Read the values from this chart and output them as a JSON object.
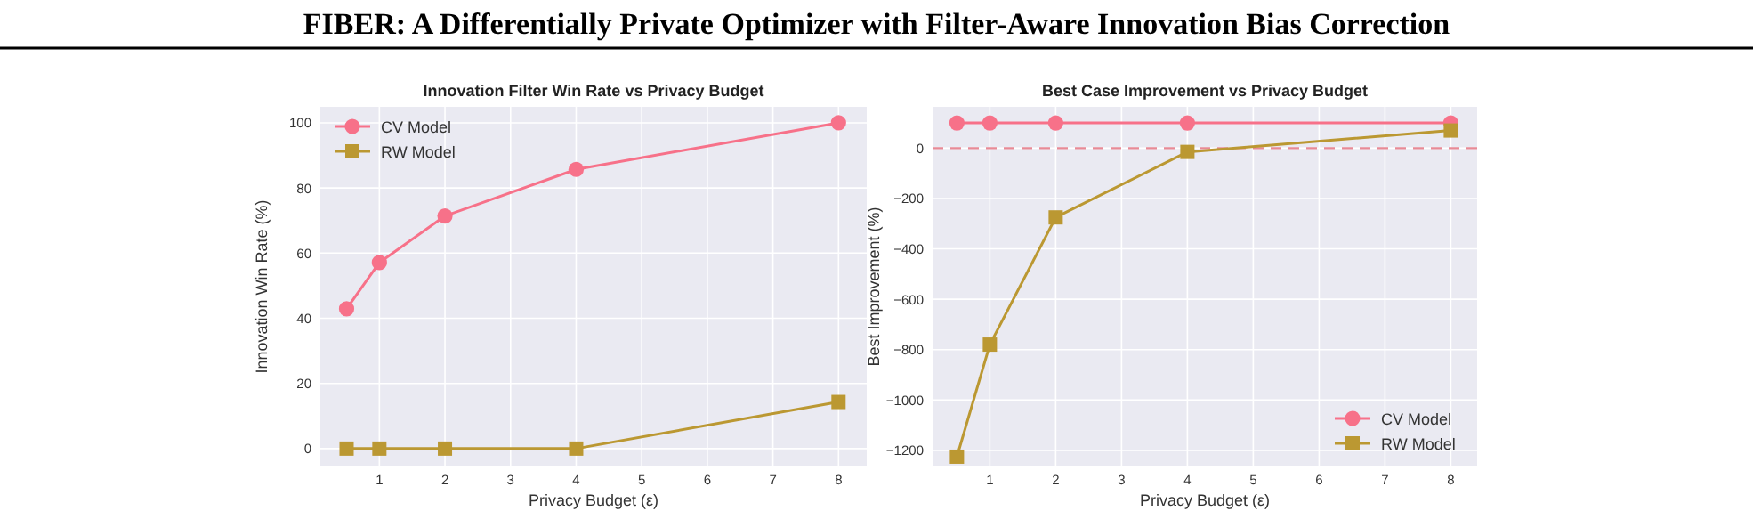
{
  "chart_data": [
    {
      "type": "line",
      "title": "Innovation Filter Win Rate vs Privacy Budget",
      "xlabel": "Privacy Budget (ε)",
      "ylabel": "Innovation Win Rate (%)",
      "annotations": [
        "FIBER: A Differentially Private Optimizer with Filter-Aware Innovation Bias Correction"
      ],
      "x": [
        0.5,
        1,
        2,
        4,
        8
      ],
      "series": [
        {
          "name": "CV Model",
          "color": "#f77189",
          "marker": "circle",
          "values": [
            42.9,
            57.1,
            71.4,
            85.7,
            100
          ]
        },
        {
          "name": "RW Model",
          "color": "#bb9832",
          "marker": "square",
          "values": [
            0,
            0,
            0,
            0,
            14.3
          ]
        }
      ],
      "xlim": [
        0.1,
        8.43
      ],
      "xticks": [
        1,
        2,
        3,
        4,
        5,
        6,
        7,
        8
      ],
      "ylim": [
        -5.5,
        104.9
      ],
      "yticks": [
        0,
        20,
        40,
        60,
        80,
        100
      ],
      "grid": true,
      "legend": "top left"
    },
    {
      "type": "line",
      "title": "Best Case Improvement vs Privacy Budget",
      "xlabel": "Privacy Budget (ε)",
      "ylabel": "Best Improvement (%)",
      "x": [
        0.5,
        1,
        2,
        4,
        8
      ],
      "series": [
        {
          "name": "CV Model",
          "color": "#f77189",
          "marker": "circle",
          "values": [
            100,
            100,
            100,
            100,
            100
          ]
        },
        {
          "name": "RW Model",
          "color": "#bb9832",
          "marker": "square",
          "values": [
            -1225,
            -780,
            -275,
            -15,
            70
          ]
        }
      ],
      "xlim": [
        0.13,
        8.4
      ],
      "xticks": [
        1,
        2,
        3,
        4,
        5,
        6,
        7,
        8
      ],
      "ylim": [
        -1264,
        164
      ],
      "yticks": [
        -1200,
        -1000,
        -800,
        -600,
        -400,
        -200,
        0
      ],
      "ref_lines": [
        {
          "axis": "y",
          "value": 0,
          "color": "#e88a96",
          "line_style": "dashed"
        }
      ],
      "grid": true,
      "legend": "bottom right"
    }
  ]
}
